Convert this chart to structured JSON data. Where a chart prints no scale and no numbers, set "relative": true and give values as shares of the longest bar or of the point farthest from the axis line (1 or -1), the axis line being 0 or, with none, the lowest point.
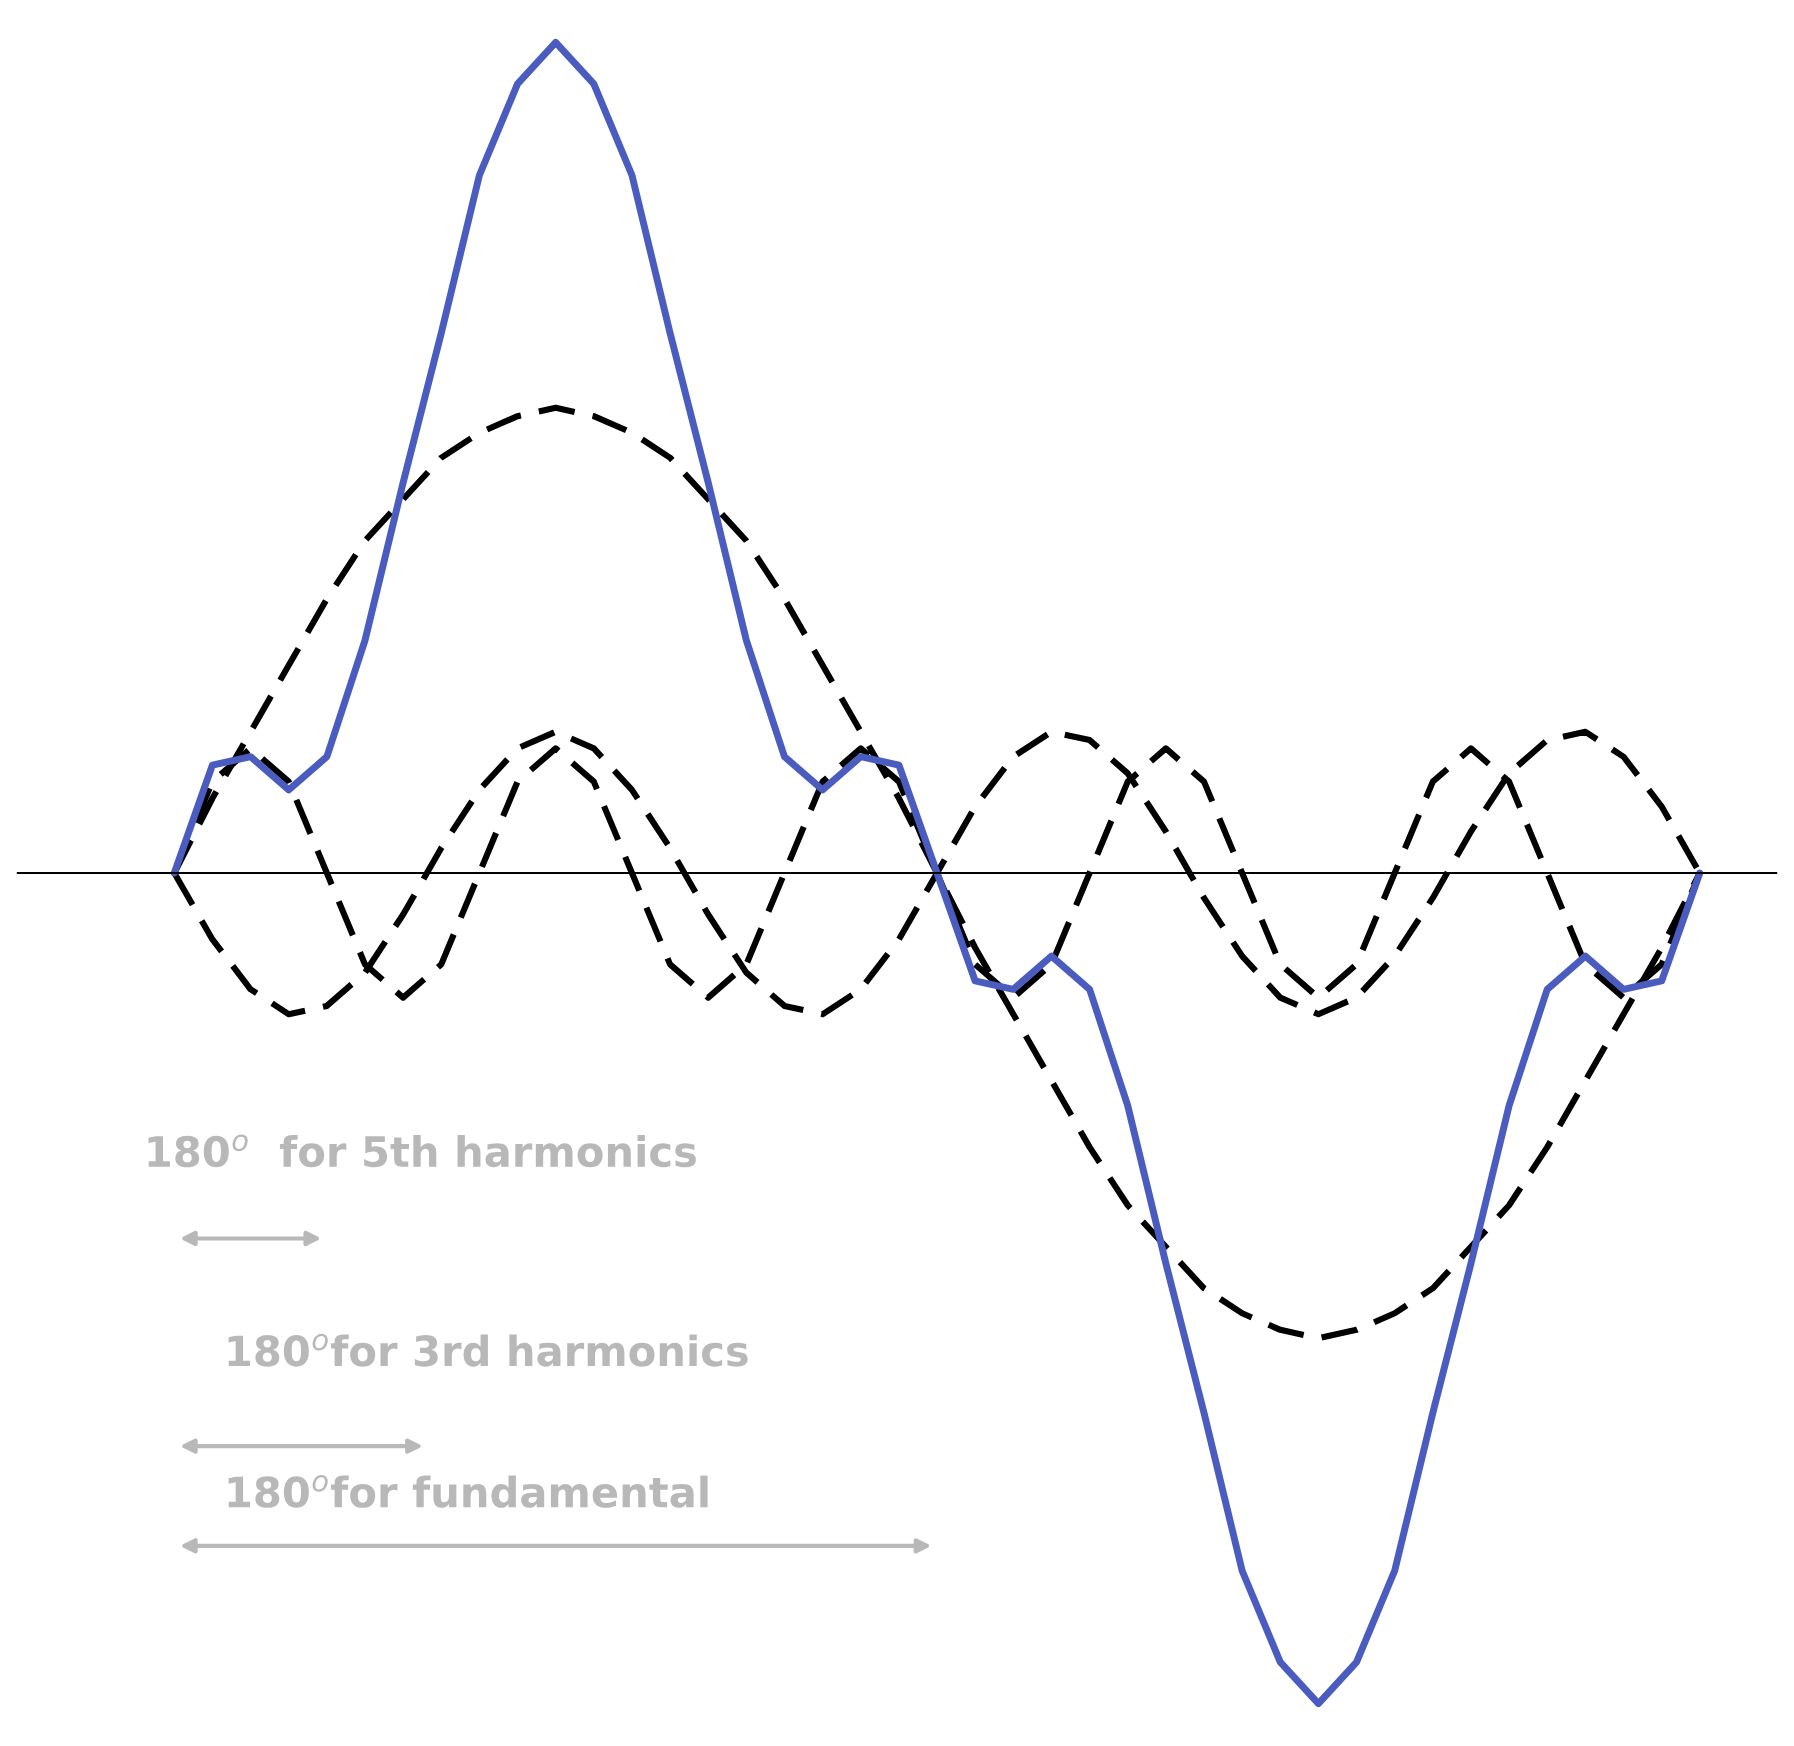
{
  "chart_data": {
    "type": "line",
    "relative": true,
    "tick_labels": false,
    "marker": "none",
    "categories": [
      null,
      null,
      null,
      null,
      null,
      null,
      null,
      null,
      null,
      null,
      null,
      null,
      null,
      null,
      null,
      null,
      null,
      null,
      null,
      null,
      null,
      null,
      null,
      null,
      null,
      null,
      null,
      null,
      null,
      null,
      null,
      null,
      null,
      null,
      null,
      null,
      null,
      null,
      null,
      null,
      null
    ],
    "series": [
      {
        "color": "#000000",
        "line_style": "dashed",
        "values": [
          0,
          0.09,
          0.17,
          0.25,
          0.33,
          0.4,
          0.45,
          0.5,
          0.53,
          0.55,
          0.56,
          0.55,
          0.53,
          0.5,
          0.45,
          0.4,
          0.33,
          0.25,
          0.17,
          0.09,
          0,
          -0.09,
          -0.17,
          -0.25,
          -0.33,
          -0.4,
          -0.45,
          -0.5,
          -0.53,
          -0.55,
          -0.56,
          -0.55,
          -0.53,
          -0.5,
          -0.45,
          -0.4,
          -0.33,
          -0.25,
          -0.17,
          -0.09,
          0
        ]
      },
      {
        "color": "#000000",
        "line_style": "dashed",
        "values": [
          0,
          -0.08,
          -0.14,
          -0.17,
          -0.16,
          -0.12,
          -0.05,
          0.03,
          0.1,
          0.15,
          0.17,
          0.15,
          0.1,
          0.03,
          -0.05,
          -0.12,
          -0.16,
          -0.17,
          -0.14,
          -0.08,
          0,
          0.08,
          0.14,
          0.17,
          0.16,
          0.12,
          0.05,
          -0.03,
          -0.1,
          -0.15,
          -0.17,
          -0.15,
          -0.1,
          -0.03,
          0.05,
          0.12,
          0.16,
          0.17,
          0.14,
          0.08,
          0
        ]
      },
      {
        "color": "#000000",
        "line_style": "dashed",
        "values": [
          0,
          0.11,
          0.15,
          0.11,
          0,
          -0.11,
          -0.15,
          -0.11,
          0,
          0.11,
          0.15,
          0.11,
          0,
          -0.11,
          -0.15,
          -0.11,
          0,
          0.11,
          0.15,
          0.11,
          0,
          -0.11,
          -0.15,
          -0.11,
          0,
          0.11,
          0.15,
          0.11,
          0,
          -0.11,
          -0.15,
          -0.11,
          0,
          0.11,
          0.15,
          0.11,
          0,
          -0.11,
          -0.15,
          -0.11,
          0
        ]
      },
      {
        "color": "#4a5cc0",
        "line_style": "solid",
        "values": [
          0,
          0.13,
          0.14,
          0.1,
          0.14,
          0.28,
          0.47,
          0.65,
          0.84,
          0.95,
          1.0,
          0.95,
          0.84,
          0.65,
          0.47,
          0.28,
          0.14,
          0.1,
          0.14,
          0.13,
          0,
          -0.13,
          -0.14,
          -0.1,
          -0.14,
          -0.28,
          -0.47,
          -0.65,
          -0.84,
          -0.95,
          -1.0,
          -0.95,
          -0.84,
          -0.65,
          -0.47,
          -0.28,
          -0.14,
          -0.1,
          -0.14,
          -0.13,
          0
        ]
      }
    ],
    "annotations": [
      "180$^{o}$  for 5th harmonics",
      "180$^{o}$for 3rd harmonics",
      "180$^{o}$for fundamental"
    ]
  }
}
